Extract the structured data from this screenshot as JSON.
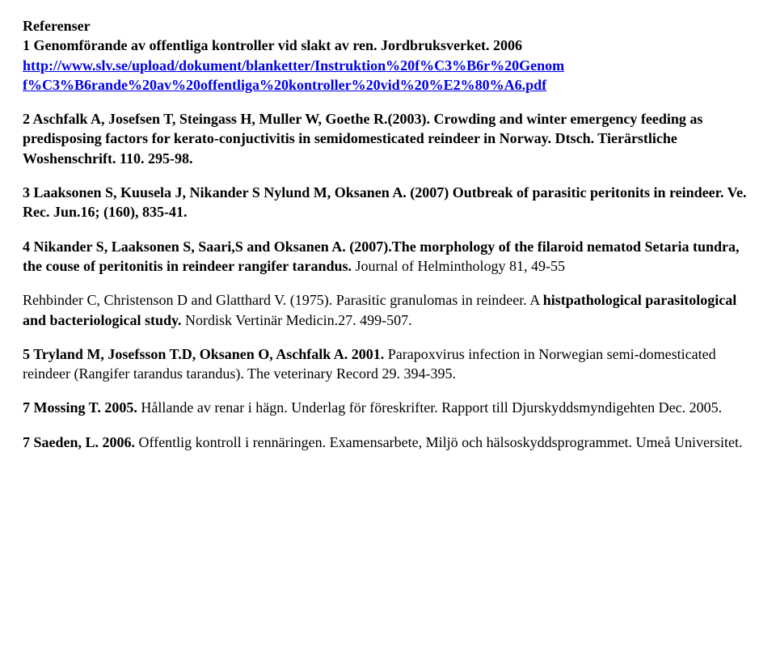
{
  "heading": "Referenser",
  "ref1": {
    "line1": "1 Genomförande av offentliga kontroller vid slakt av ren. Jordbruksverket. 2006",
    "link_part1": "http://www.slv.se/upload/dokument/blanketter/Instruktion%20f%C3%B6r%20Genom",
    "link_part2": "f%C3%B6rande%20av%20offentliga%20kontroller%20vid%20%E2%80%A6.pdf"
  },
  "ref2": "2 Aschfalk A, Josefsen T, Steingass H, Muller W, Goethe R.(2003). Crowding and winter emergency feeding as predisposing factors for kerato-conjuctivitis in semidomesticated reindeer in Norway. Dtsch. Tierärstliche Woshenschrift. 110. 295-98.",
  "ref3": "3 Laaksonen S, Kuusela J, Nikander S Nylund M, Oksanen A. (2007)  Outbreak of parasitic peritonits in reindeer. Ve. Rec. Jun.16; (160), 835-41.",
  "ref4": {
    "bold": "4 Nikander S, Laaksonen S, Saari,S and Oksanen A. (2007).The morphology of the filaroid nematod Setaria tundra, the couse of peritonitis in reindeer rangifer tarandus.",
    "rest": " Journal of Helminthology 81, 49-55"
  },
  "ref5": {
    "plain": "Rehbinder C, Christenson D and Glatthard V. (1975). Parasitic granulomas in reindeer. A ",
    "bold": "histpathological parasitological and bacteriological study.",
    "tail": " Nordisk Vertinär Medicin.27. 499-507."
  },
  "ref6": {
    "bold1": "5 Tryland M, Josefsson T.D, Oksanen O, Aschfalk A. 2001.",
    "plain": " Parapoxvirus infection in Norwegian semi-domesticated reindeer (Rangifer tarandus tarandus). The veterinary Record 29. 394-395."
  },
  "ref7": {
    "bold": "7 Mossing T. 2005.",
    "plain": " Hållande av renar i hägn. Underlag för föreskrifter. Rapport till Djurskyddsmyndigehten Dec. 2005."
  },
  "ref8": {
    "bold": "7 Saeden, L. 2006.",
    "plain": " Offentlig kontroll i rennäringen. Examensarbete, Miljö och hälsoskyddsprogrammet. Umeå Universitet."
  }
}
